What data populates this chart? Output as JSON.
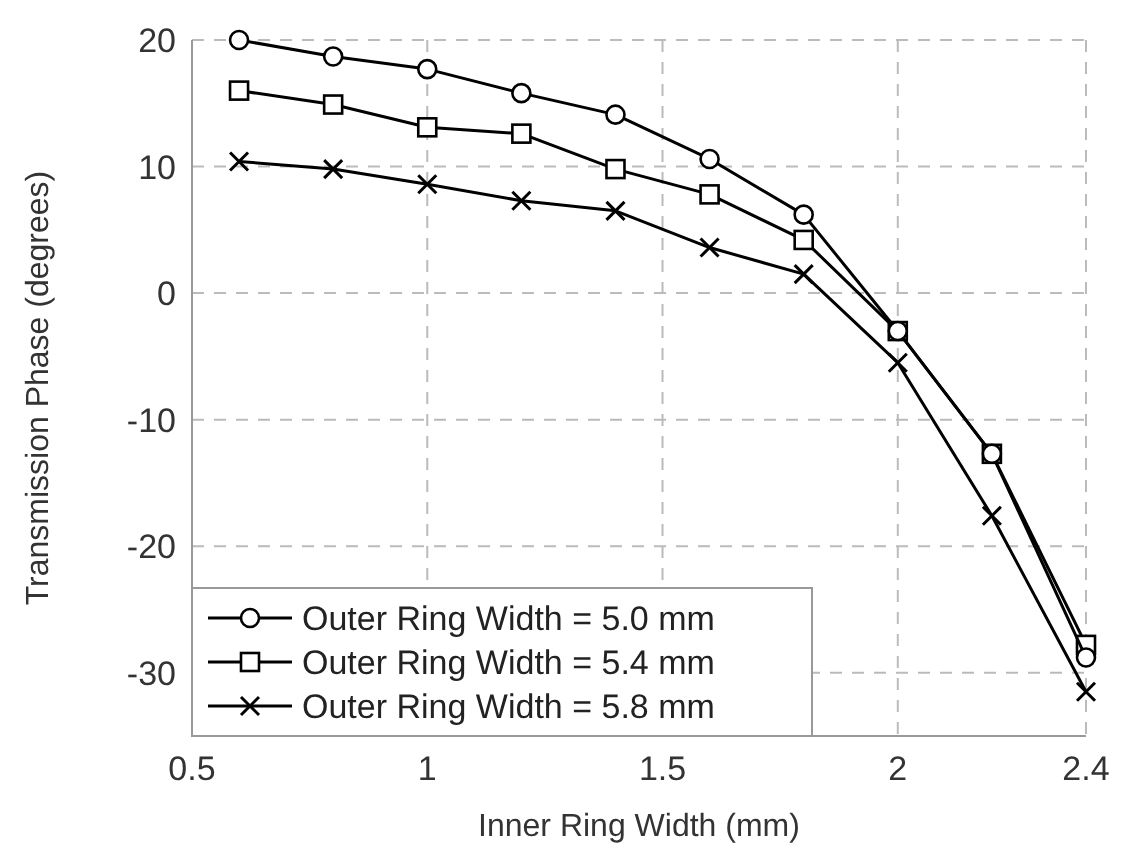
{
  "chart_data": {
    "type": "line",
    "xlabel": "Inner Ring Width (mm)",
    "ylabel": "Transmission Phase (degrees)",
    "x": [
      0.6,
      0.8,
      1.0,
      1.2,
      1.4,
      1.6,
      1.8,
      2.0,
      2.2,
      2.4
    ],
    "series": [
      {
        "name": "Outer Ring Width = 5.0 mm",
        "color": "#000000",
        "marker": "circle",
        "values": [
          20,
          18.7,
          17.7,
          15.8,
          14.1,
          10.6,
          6.2,
          -3,
          -12.7,
          -28.8
        ]
      },
      {
        "name": "Outer Ring Width = 5.4 mm",
        "color": "#000000",
        "marker": "square",
        "values": [
          16,
          14.9,
          13.1,
          12.6,
          9.8,
          7.8,
          4.2,
          -3,
          -12.7,
          -27.8
        ]
      },
      {
        "name": "Outer Ring Width = 5.8 mm",
        "color": "#000000",
        "marker": "cross",
        "values": [
          10.4,
          9.8,
          8.6,
          7.3,
          6.5,
          3.6,
          1.5,
          -5.5,
          -17.6,
          -31.5
        ]
      }
    ],
    "xlim": [
      0.5,
      2.4
    ],
    "xticks": [
      0.5,
      1,
      1.5,
      2,
      2.4
    ],
    "ylim": [
      -35,
      20
    ],
    "yticks": [
      -30,
      -20,
      -10,
      0,
      10,
      20
    ],
    "grid": true,
    "legend": "bottom left",
    "line_style": "solid"
  }
}
